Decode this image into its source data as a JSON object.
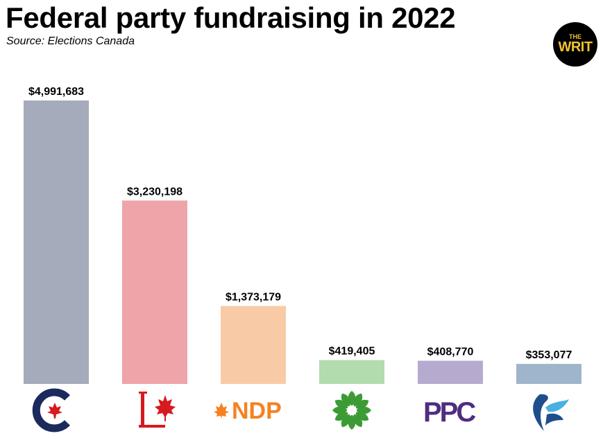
{
  "header": {
    "title": "Federal party fundraising in 2022",
    "subtitle": "Source: Elections Canada"
  },
  "badge": {
    "top": "THE",
    "bottom": "WRIT",
    "color": "#f2c230",
    "background": "#000000"
  },
  "chart_data": {
    "type": "bar",
    "title": "Federal party fundraising in 2022",
    "subtitle": "Source: Elections Canada",
    "categories": [
      "Conservative Party of Canada",
      "Liberal Party of Canada",
      "NDP",
      "Green Party of Canada",
      "PPC",
      "Bloc Québécois"
    ],
    "values": [
      4991683,
      3230198,
      1373179,
      419405,
      408770,
      353077
    ],
    "data_labels": [
      "$4,991,683",
      "$3,230,198",
      "$1,373,179",
      "$419,405",
      "$408,770",
      "$353,077"
    ],
    "colors": [
      "#a5abba",
      "#eea4a9",
      "#f8cba6",
      "#b2dbae",
      "#b6abcf",
      "#9fb5cb"
    ],
    "xlabel": "",
    "ylabel": "",
    "ylim": [
      0,
      4991683
    ],
    "grid": false,
    "legend": "none",
    "logos": [
      {
        "icon": "conservative-logo-icon",
        "color": "#1a2a5c",
        "accent": "#d71920"
      },
      {
        "icon": "liberal-logo-icon",
        "color": "#d71920"
      },
      {
        "icon": "ndp-logo-icon",
        "text": "NDP",
        "color": "#f58220"
      },
      {
        "icon": "green-flower-logo-icon",
        "color": "#3d9b35"
      },
      {
        "icon": "ppc-logo-icon",
        "text": "PPC",
        "color": "#4f2d7f"
      },
      {
        "icon": "bloc-logo-icon",
        "color": "#1f4e8c",
        "accent": "#4ab0e0"
      }
    ]
  }
}
